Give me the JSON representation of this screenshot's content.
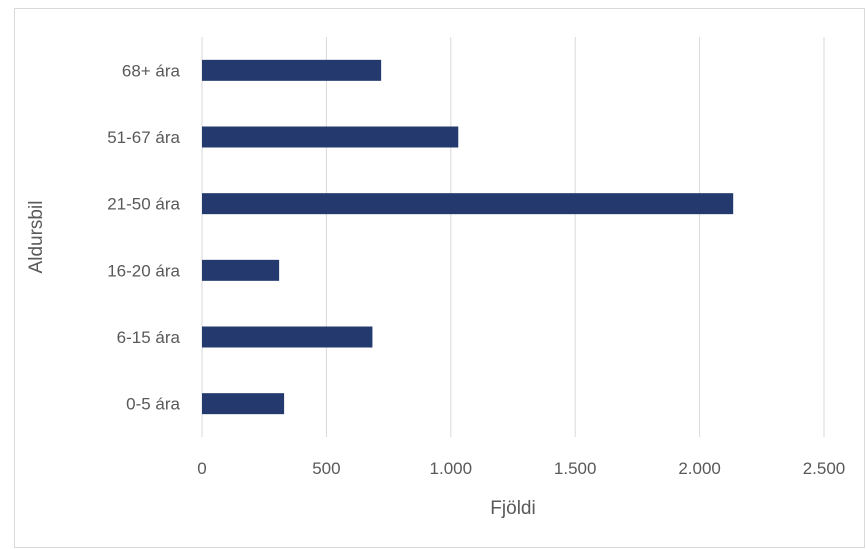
{
  "chart_data": {
    "type": "bar",
    "orientation": "horizontal",
    "categories": [
      "0-5 ára",
      "6-15 ára",
      "16-20 ára",
      "21-50 ára",
      "51-67 ára",
      "68+ ára"
    ],
    "values": [
      330,
      685,
      310,
      2135,
      1030,
      720
    ],
    "xlabel": "Fjöldi",
    "ylabel": "Aldursbil",
    "xlim": [
      0,
      2500
    ],
    "x_ticks": [
      {
        "value": 0,
        "label": "0"
      },
      {
        "value": 500,
        "label": "500"
      },
      {
        "value": 1000,
        "label": "1.000"
      },
      {
        "value": 1500,
        "label": "1.500"
      },
      {
        "value": 2000,
        "label": "2.000"
      },
      {
        "value": 2500,
        "label": "2.500"
      }
    ],
    "grid": "vertical",
    "legend": "none",
    "colors": {
      "bar": "#243a6e",
      "grid": "#d9d9d9",
      "text": "#595959"
    }
  }
}
